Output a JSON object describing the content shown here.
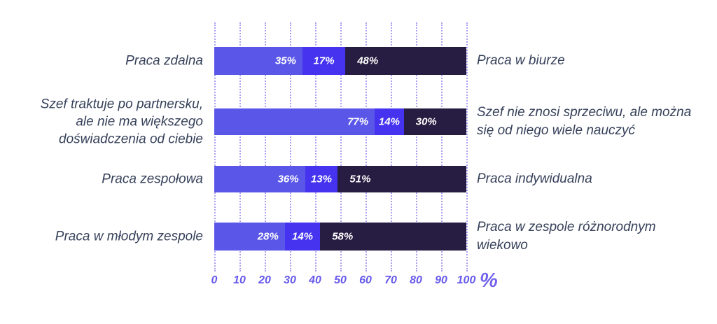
{
  "chart_data": {
    "type": "bar",
    "subtype": "horizontal-stacked",
    "title": "",
    "grid": "dotted-vertical",
    "legend": "none",
    "axis": {
      "ticks": [
        0,
        10,
        20,
        30,
        40,
        50,
        60,
        70,
        80,
        90,
        100
      ],
      "unit_label": "%",
      "range": [
        0,
        100
      ]
    },
    "colors": {
      "segments": [
        "#5a57e8",
        "#4533ef",
        "#271c41"
      ],
      "gridline": "#aba1f3",
      "axis_text": "#675aea",
      "label_text": "#36415a",
      "value_text": "#ffffff"
    },
    "rows": [
      {
        "left_label": "Praca zdalna",
        "right_label": "Praca w biurze",
        "values": [
          35,
          17,
          48
        ],
        "value_labels": [
          "35%",
          "17%",
          "48%"
        ]
      },
      {
        "left_label": "Szef traktuje po partnersku,\nale nie ma większego\ndoświadczenia od ciebie",
        "right_label": "Szef nie znosi sprzeciwu, ale można\nsię od niego wiele nauczyć",
        "values": [
          77,
          14,
          30
        ],
        "value_labels": [
          "77%",
          "14%",
          "30%"
        ]
      },
      {
        "left_label": "Praca zespołowa",
        "right_label": "Praca indywidualna",
        "values": [
          36,
          13,
          51
        ],
        "value_labels": [
          "36%",
          "13%",
          "51%"
        ]
      },
      {
        "left_label": "Praca w młodym zespole",
        "right_label": "Praca w zespole różnorodnym\nwiekowo",
        "values": [
          28,
          14,
          58
        ],
        "value_labels": [
          "28%",
          "14%",
          "58%"
        ]
      }
    ]
  }
}
